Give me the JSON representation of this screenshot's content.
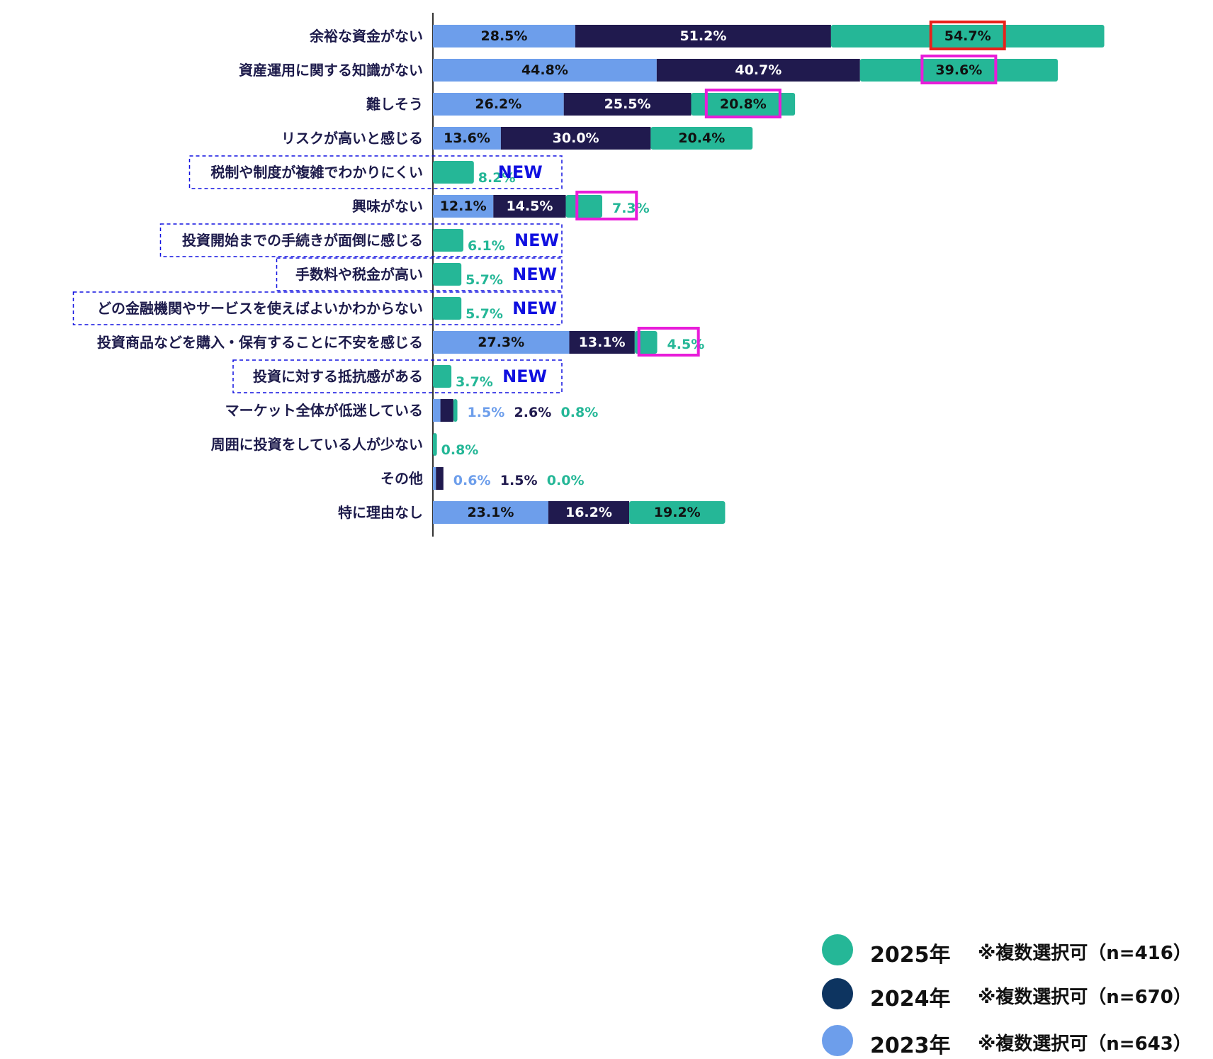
{
  "colors": {
    "y2023": "#6d9eeb",
    "y2024": "#201a4e",
    "y2025": "#25b797",
    "highlight_red": "#e8221b",
    "highlight_magenta": "#e81cd9",
    "new_label": "#1010e0",
    "category_text": "#1d1b4b",
    "axis": "#333333"
  },
  "legend": [
    {
      "year": "2025年",
      "note": "※複数選択可（n=416）",
      "color": "#25b797"
    },
    {
      "year": "2024年",
      "note": "※複数選択可（n=670）",
      "color": "#0d3460"
    },
    {
      "year": "2023年",
      "note": "※複数選択可（n=643）",
      "color": "#6d9eeb"
    }
  ],
  "chart_data": {
    "type": "bar",
    "orientation": "horizontal",
    "stacked": true,
    "legend_position": "right",
    "series_order": [
      "2023年",
      "2024年",
      "2025年"
    ],
    "xlim": [
      0,
      160
    ],
    "categories": [
      "余裕な資金がない",
      "資産運用に関する知識がない",
      "難しそう",
      "リスクが高いと感じる",
      "税制や制度が複雑でわかりにくい",
      "興味がない",
      "投資開始までの手続きが面倒に感じる",
      "手数料や税金が高い",
      "どの金融機関やサービスを使えばよいかわからない",
      "投資商品などを購入・保有することに不安を感じる",
      "投資に対する抵抗感がある",
      "マーケット全体が低迷している",
      "周囲に投資をしている人が少ない",
      "その他",
      "特に理由なし"
    ],
    "series": [
      {
        "name": "2023年",
        "values": [
          28.5,
          44.8,
          26.2,
          13.6,
          null,
          12.1,
          null,
          null,
          null,
          27.3,
          null,
          1.5,
          null,
          0.6,
          23.1
        ]
      },
      {
        "name": "2024年",
        "values": [
          51.2,
          40.7,
          25.5,
          30.0,
          null,
          14.5,
          null,
          null,
          null,
          13.1,
          null,
          2.6,
          null,
          1.5,
          16.2
        ]
      },
      {
        "name": "2025年",
        "values": [
          54.7,
          39.6,
          20.8,
          20.4,
          8.2,
          7.3,
          6.1,
          5.7,
          5.7,
          4.5,
          3.7,
          0.8,
          0.8,
          0.0,
          19.2
        ]
      }
    ],
    "data_labels": [
      [
        "28.5%",
        "51.2%",
        "54.7%"
      ],
      [
        "44.8%",
        "40.7%",
        "39.6%"
      ],
      [
        "26.2%",
        "25.5%",
        "20.8%"
      ],
      [
        "13.6%",
        "30.0%",
        "20.4%"
      ],
      [
        null,
        null,
        "8.2%"
      ],
      [
        "12.1%",
        "14.5%",
        "7.3%"
      ],
      [
        null,
        null,
        "6.1%"
      ],
      [
        null,
        null,
        "5.7%"
      ],
      [
        null,
        null,
        "5.7%"
      ],
      [
        "27.3%",
        "13.1%",
        "4.5%"
      ],
      [
        null,
        null,
        "3.7%"
      ],
      [
        "1.5%",
        "2.6%",
        "0.8%"
      ],
      [
        null,
        null,
        "0.8%"
      ],
      [
        "0.6%",
        "1.5%",
        "0.0%"
      ],
      [
        "23.1%",
        "16.2%",
        "19.2%"
      ]
    ],
    "new_badge_text": "NEW",
    "new_categories": [
      4,
      6,
      7,
      8,
      10
    ],
    "highlighted": [
      {
        "category": 0,
        "series": 2,
        "color": "red"
      },
      {
        "category": 1,
        "series": 2,
        "color": "magenta"
      },
      {
        "category": 2,
        "series": 2,
        "color": "magenta"
      },
      {
        "category": 5,
        "series": 2,
        "color": "magenta"
      },
      {
        "category": 9,
        "series": 2,
        "color": "magenta"
      }
    ]
  }
}
